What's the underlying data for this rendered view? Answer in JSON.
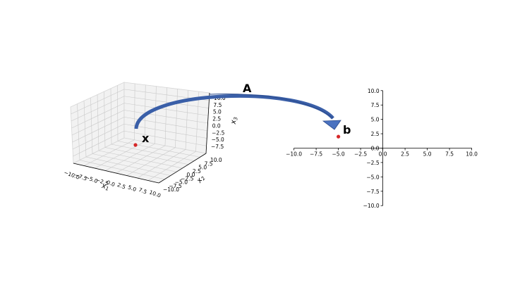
{
  "labels": {
    "transform": "A",
    "input_point": "x",
    "output_point": "b"
  },
  "colors": {
    "arrow": "#3a5fa8",
    "point": "#d62728",
    "pane_fill": "#f2f2f2"
  },
  "left_plot": {
    "type": "3d-scatter",
    "x1_label": "x1",
    "x2_label": "x2",
    "x3_label": "x3",
    "x1_ticks": [
      "−10.0",
      "−7.5",
      "−5.0",
      "−2.5",
      "0.0",
      "2.5",
      "5.0",
      "7.5",
      "10.0"
    ],
    "x2_ticks": [
      "−10.0",
      "−7.5",
      "−5.0",
      "−2.5",
      "0.0",
      "2.5",
      "5.0",
      "7.5",
      "10.0"
    ],
    "x3_ticks": [
      "−7.5",
      "−5.0",
      "−2.5",
      "0.0",
      "2.5",
      "5.0",
      "7.5",
      "10.0"
    ]
  },
  "chart_data": {
    "type": "scatter",
    "xlim": [
      -10,
      10
    ],
    "ylim": [
      -10,
      10
    ],
    "grid": false,
    "x_ticks": [
      "−10.0",
      "−7.5",
      "−5.0",
      "−2.5",
      "0.0",
      "2.5",
      "5.0",
      "7.5",
      "10.0"
    ],
    "y_ticks": [
      "−10.0",
      "−7.5",
      "−5.0",
      "−2.5",
      "0.0",
      "2.5",
      "5.0",
      "7.5",
      "10.0"
    ],
    "x": [
      -5
    ],
    "y": [
      2
    ]
  }
}
